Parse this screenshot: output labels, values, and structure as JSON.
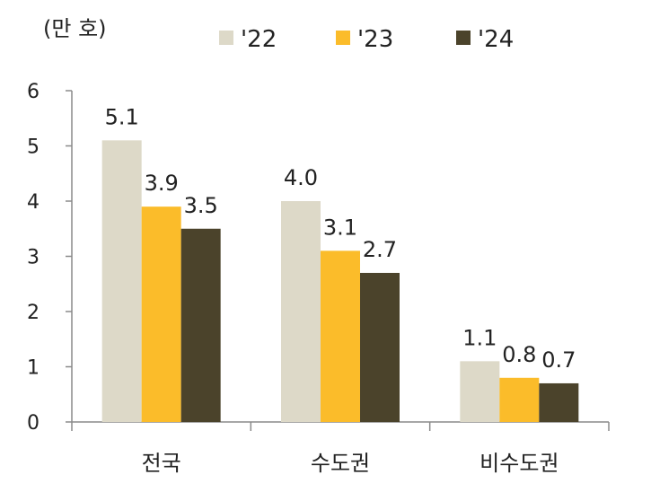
{
  "chart_data": {
    "type": "bar",
    "unit_label": "(만 호)",
    "categories": [
      "전국",
      "수도권",
      "비수도권"
    ],
    "series": [
      {
        "name": "'22",
        "color": "#ddd9c8",
        "values": [
          5.1,
          4.0,
          1.1
        ],
        "labels": [
          "5.1",
          "4.0",
          "1.1"
        ]
      },
      {
        "name": "'23",
        "color": "#fbbc2a",
        "values": [
          3.9,
          3.1,
          0.8
        ],
        "labels": [
          "3.9",
          "3.1",
          "0.8"
        ]
      },
      {
        "name": "'24",
        "color": "#4b432b",
        "values": [
          3.5,
          2.7,
          0.7
        ],
        "labels": [
          "3.5",
          "2.7",
          "0.7"
        ]
      }
    ],
    "yticks": [
      "0",
      "1",
      "2",
      "3",
      "4",
      "5",
      "6"
    ],
    "ylim": [
      0,
      6
    ],
    "grid": false,
    "legend_position": "top"
  }
}
